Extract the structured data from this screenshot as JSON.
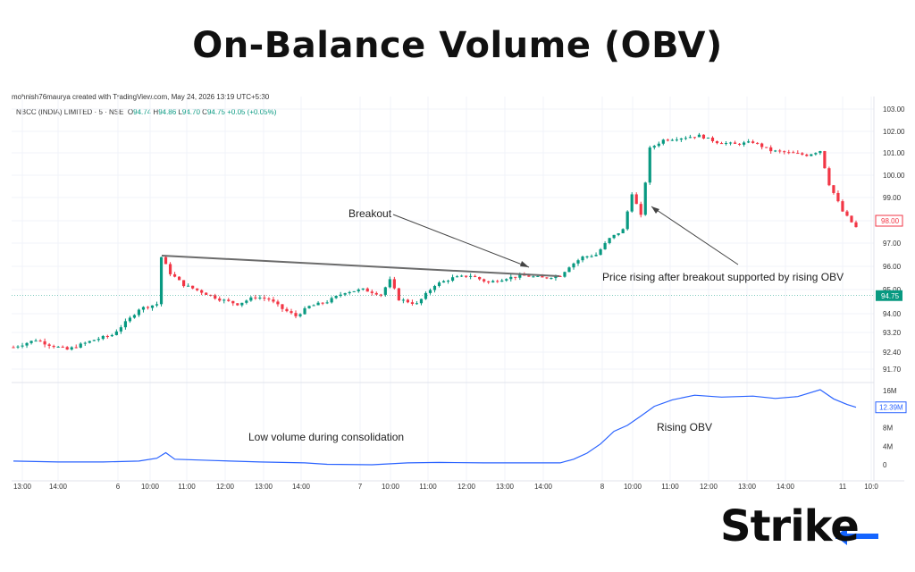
{
  "title": "On-Balance Volume (OBV)",
  "attribution": "mohnish76maurya created with TradingView.com, May 24, 2026 13:19 UTC+5:30",
  "legend": {
    "symbol": "NBCC (INDIA) LIMITED · 5 · NSE",
    "o_label": "O",
    "o_value": "94.74",
    "h_label": "H",
    "h_value": "94.86",
    "l_label": "L",
    "l_value": "94.70",
    "c_label": "C",
    "c_value": "94.75",
    "change": "+0.05 (+0.05%)"
  },
  "logo": {
    "text": "Strike",
    "accent_color": "#1565ff"
  },
  "colors": {
    "up": "#089981",
    "down": "#f23645",
    "obv": "#2962ff",
    "trendline": "#6b6b6b"
  },
  "annotations": {
    "breakout": "Breakout",
    "price_rising": "Price rising after breakout supported by rising OBV",
    "rising_obv": "Rising OBV",
    "low_volume": "Low volume during consolidation"
  },
  "chart_data": [
    {
      "type": "candlestick",
      "interval": "5",
      "price_axis_ticks": [
        "103.00",
        "102.00",
        "101.00",
        "100.00",
        "99.00",
        "98.00",
        "97.00",
        "96.00",
        "95.00",
        "94.00",
        "93.20",
        "92.40",
        "91.70"
      ],
      "price_badges": [
        {
          "label": "98.00",
          "value": 98.0,
          "color": "#f23645"
        },
        {
          "label": "94.75",
          "value": 94.75,
          "color": "#089981"
        }
      ],
      "x_tick_labels": [
        "13:00",
        "14:00",
        "6",
        "10:00",
        "11:00",
        "12:00",
        "13:00",
        "14:00",
        "7",
        "10:00",
        "11:00",
        "12:00",
        "13:00",
        "14:00",
        "8",
        "10:00",
        "11:00",
        "12:00",
        "13:00",
        "14:00",
        "11",
        "10:0"
      ],
      "ylim": [
        91.7,
        103.0
      ],
      "close_path": [
        [
          0,
          92.6
        ],
        [
          5,
          92.9
        ],
        [
          8,
          92.7
        ],
        [
          12,
          92.5
        ],
        [
          15,
          92.7
        ],
        [
          18,
          92.9
        ],
        [
          22,
          93.1
        ],
        [
          26,
          93.8
        ],
        [
          28,
          94.2
        ],
        [
          32,
          94.4
        ],
        [
          33,
          96.4
        ],
        [
          35,
          95.7
        ],
        [
          38,
          95.2
        ],
        [
          42,
          94.9
        ],
        [
          46,
          94.6
        ],
        [
          50,
          94.4
        ],
        [
          54,
          94.7
        ],
        [
          57,
          94.6
        ],
        [
          60,
          94.2
        ],
        [
          63,
          93.9
        ],
        [
          66,
          94.3
        ],
        [
          70,
          94.5
        ],
        [
          74,
          94.9
        ],
        [
          78,
          95.0
        ],
        [
          82,
          94.8
        ],
        [
          84,
          95.4
        ],
        [
          86,
          94.6
        ],
        [
          90,
          94.4
        ],
        [
          94,
          95.2
        ],
        [
          98,
          95.5
        ],
        [
          102,
          95.6
        ],
        [
          106,
          95.3
        ],
        [
          110,
          95.5
        ],
        [
          114,
          95.6
        ],
        [
          118,
          95.5
        ],
        [
          122,
          95.6
        ],
        [
          124,
          96.0
        ],
        [
          127,
          96.4
        ],
        [
          130,
          96.5
        ],
        [
          133,
          97.2
        ],
        [
          136,
          97.6
        ],
        [
          138,
          99.2
        ],
        [
          140,
          98.2
        ],
        [
          142,
          101.2
        ],
        [
          145,
          101.6
        ],
        [
          149,
          101.7
        ],
        [
          153,
          101.8
        ],
        [
          157,
          101.5
        ],
        [
          161,
          101.4
        ],
        [
          165,
          101.5
        ],
        [
          169,
          101.1
        ],
        [
          173,
          101.0
        ],
        [
          177,
          100.9
        ],
        [
          180,
          101.1
        ],
        [
          182,
          99.6
        ],
        [
          185,
          98.4
        ],
        [
          188,
          97.7
        ]
      ]
    },
    {
      "type": "line",
      "name": "OBV",
      "y_axis_ticks": [
        "16M",
        "12M",
        "8M",
        "4M",
        "0"
      ],
      "badge": {
        "label": "12.39M",
        "value": 12.39
      },
      "ylim": [
        0,
        16
      ],
      "x_index_range": [
        0,
        188
      ],
      "values": [
        [
          0,
          0.8
        ],
        [
          10,
          0.6
        ],
        [
          20,
          0.6
        ],
        [
          28,
          0.8
        ],
        [
          32,
          1.4
        ],
        [
          34,
          2.6
        ],
        [
          36,
          1.2
        ],
        [
          45,
          0.9
        ],
        [
          55,
          0.6
        ],
        [
          65,
          0.4
        ],
        [
          70,
          0.1
        ],
        [
          80,
          0.0
        ],
        [
          88,
          0.4
        ],
        [
          95,
          0.5
        ],
        [
          105,
          0.4
        ],
        [
          115,
          0.4
        ],
        [
          122,
          0.4
        ],
        [
          125,
          1.2
        ],
        [
          128,
          2.5
        ],
        [
          131,
          4.5
        ],
        [
          134,
          7.2
        ],
        [
          137,
          8.5
        ],
        [
          140,
          10.5
        ],
        [
          143,
          12.6
        ],
        [
          147,
          14.0
        ],
        [
          152,
          15.0
        ],
        [
          158,
          14.6
        ],
        [
          165,
          14.8
        ],
        [
          170,
          14.3
        ],
        [
          175,
          14.7
        ],
        [
          180,
          16.2
        ],
        [
          183,
          14.2
        ],
        [
          186,
          13.0
        ],
        [
          188,
          12.39
        ]
      ]
    }
  ]
}
